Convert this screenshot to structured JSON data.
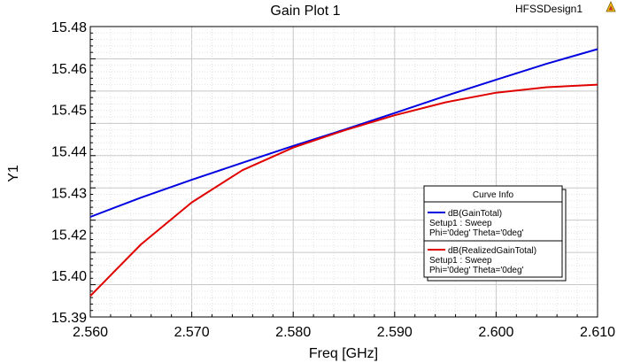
{
  "header": {
    "design_name": "HFSSDesign1",
    "icon": "ansys-logo-icon"
  },
  "chart_data": {
    "type": "line",
    "title": "Gain Plot 1",
    "xlabel": "Freq [GHz]",
    "ylabel": "Y1",
    "xlim": [
      2.56,
      2.61
    ],
    "ylim": [
      15.39,
      15.48
    ],
    "x_ticks": [
      "2.560",
      "2.570",
      "2.580",
      "2.590",
      "2.600",
      "2.610"
    ],
    "x_tick_values": [
      2.56,
      2.57,
      2.58,
      2.59,
      2.6,
      2.61
    ],
    "y_ticks": [
      "15.39",
      "15.40",
      "15.42",
      "15.43",
      "15.44",
      "15.45",
      "15.46",
      "15.48"
    ],
    "y_tick_values": [
      15.39,
      15.4,
      15.42,
      15.43,
      15.44,
      15.45,
      15.46,
      15.48
    ],
    "grid": true,
    "legend_title": "Curve Info",
    "legend_position": "bottom-right",
    "series": [
      {
        "name": "dB(GainTotal)",
        "setup": "Setup1 : Sweep",
        "variables": "Phi='0deg' Theta='0deg'",
        "color": "#0000e0",
        "points": [
          [
            2.56,
            15.421
          ],
          [
            2.565,
            15.427
          ],
          [
            2.57,
            15.4325
          ],
          [
            2.575,
            15.4378
          ],
          [
            2.58,
            15.443
          ],
          [
            2.585,
            15.448
          ],
          [
            2.59,
            15.4532
          ],
          [
            2.595,
            15.4585
          ],
          [
            2.6,
            15.4635
          ],
          [
            2.605,
            15.4685
          ],
          [
            2.61,
            15.473
          ]
        ]
      },
      {
        "name": "dB(RealizedGainTotal)",
        "setup": "Setup1 : Sweep",
        "variables": "Phi='0deg' Theta='0deg'",
        "color": "#e00000",
        "points": [
          [
            2.56,
            15.3965
          ],
          [
            2.565,
            15.4125
          ],
          [
            2.57,
            15.4255
          ],
          [
            2.575,
            15.4355
          ],
          [
            2.58,
            15.4425
          ],
          [
            2.585,
            15.4478
          ],
          [
            2.59,
            15.4525
          ],
          [
            2.595,
            15.4565
          ],
          [
            2.6,
            15.4595
          ],
          [
            2.605,
            15.4612
          ],
          [
            2.61,
            15.462
          ]
        ]
      }
    ]
  }
}
